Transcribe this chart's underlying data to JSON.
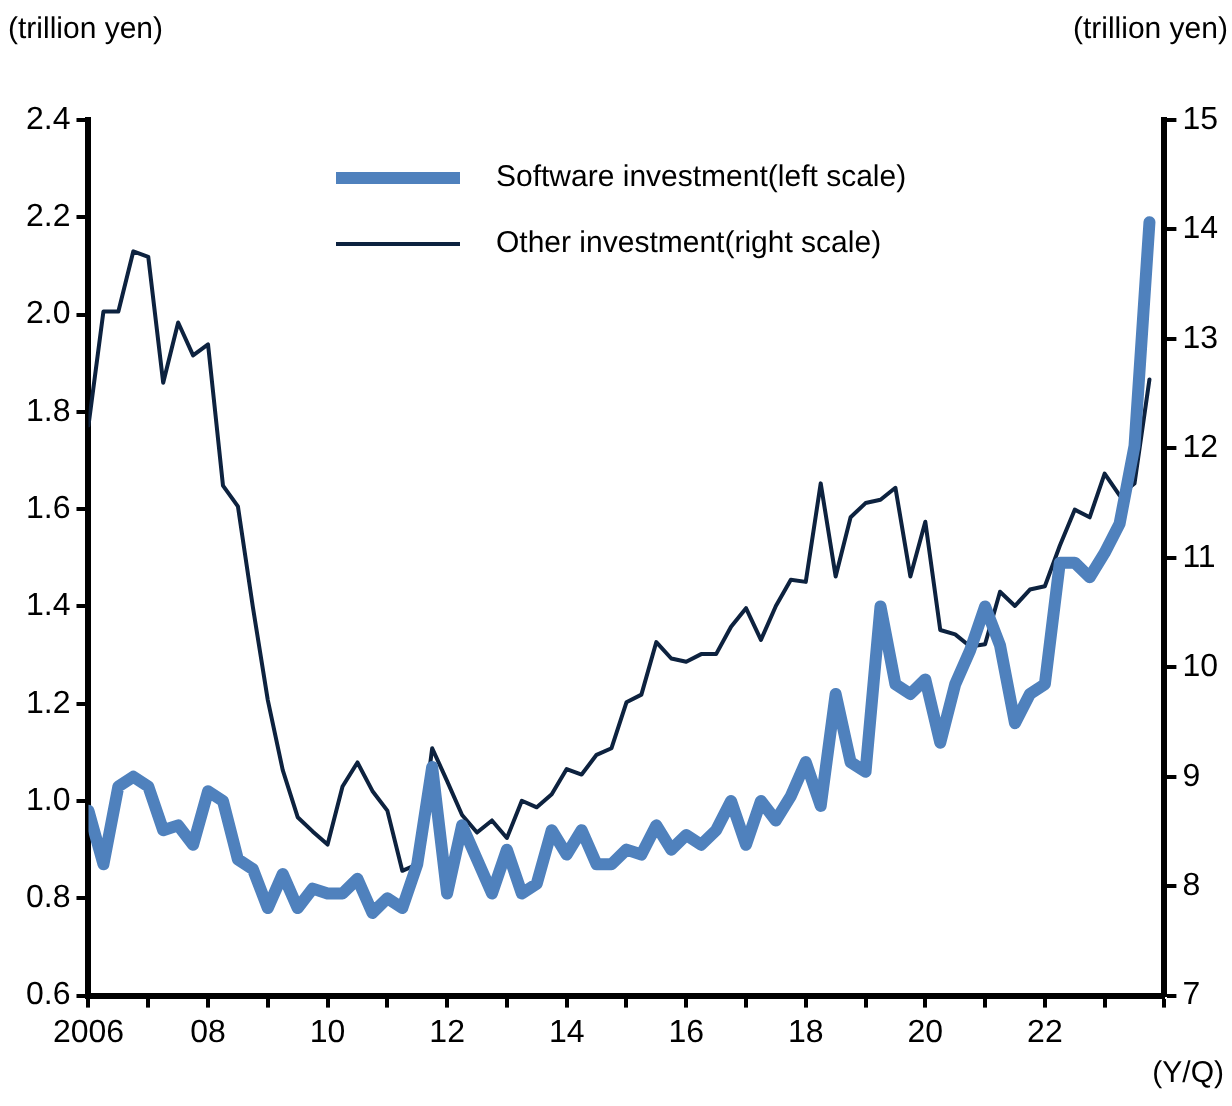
{
  "chart_data": {
    "type": "line",
    "xlabel": "(Y/Q)",
    "ylabel": "(trillion yen)",
    "y2label": "(trillion yen)",
    "x": [
      2006,
      2006.25,
      2006.5,
      2006.75,
      2007,
      2007.25,
      2007.5,
      2007.75,
      2008,
      2008.25,
      2008.5,
      2008.75,
      2009,
      2009.25,
      2009.5,
      2009.75,
      2010,
      2010.25,
      2010.5,
      2010.75,
      2011,
      2011.25,
      2011.5,
      2011.75,
      2012,
      2012.25,
      2012.5,
      2012.75,
      2013,
      2013.25,
      2013.5,
      2013.75,
      2014,
      2014.25,
      2014.5,
      2014.75,
      2015,
      2015.25,
      2015.5,
      2015.75,
      2016,
      2016.25,
      2016.5,
      2016.75,
      2017,
      2017.25,
      2017.5,
      2017.75,
      2018,
      2018.25,
      2018.5,
      2018.75,
      2019,
      2019.25,
      2019.5,
      2019.75,
      2020,
      2020.25,
      2020.5,
      2020.75,
      2021,
      2021.25,
      2021.5,
      2021.75,
      2022,
      2022.25,
      2022.5,
      2022.75,
      2023,
      2023.25,
      2023.5,
      2023.75
    ],
    "series": [
      {
        "name": "Software investment(left scale)",
        "color": "#4f81bd",
        "values": [
          0.98,
          0.87,
          1.03,
          1.05,
          1.03,
          0.94,
          0.95,
          0.91,
          1.02,
          1.0,
          0.88,
          0.86,
          0.78,
          0.85,
          0.78,
          0.82,
          0.81,
          0.81,
          0.84,
          0.77,
          0.8,
          0.78,
          0.87,
          1.07,
          0.81,
          0.95,
          0.88,
          0.81,
          0.9,
          0.81,
          0.83,
          0.94,
          0.89,
          0.94,
          0.87,
          0.87,
          0.9,
          0.89,
          0.95,
          0.9,
          0.93,
          0.91,
          0.94,
          1.0,
          0.91,
          1.0,
          0.96,
          1.01,
          1.08,
          0.99,
          1.22,
          1.08,
          1.06,
          1.4,
          1.24,
          1.22,
          1.25,
          1.12,
          1.24,
          1.31,
          1.4,
          1.32,
          1.16,
          1.22,
          1.24,
          1.49,
          1.49,
          1.46,
          1.51,
          1.57,
          1.73,
          2.19
        ]
      },
      {
        "name": "Other investment(right scale)",
        "color": "#0d223f",
        "axis": "y2",
        "values": [
          12.21,
          13.25,
          13.25,
          13.8,
          13.75,
          12.6,
          13.15,
          12.85,
          12.95,
          11.66,
          11.47,
          10.55,
          9.7,
          9.06,
          8.63,
          8.5,
          8.38,
          8.91,
          9.13,
          8.87,
          8.69,
          8.14,
          8.2,
          9.26,
          8.96,
          8.65,
          8.49,
          8.6,
          8.44,
          8.78,
          8.72,
          8.84,
          9.07,
          9.02,
          9.2,
          9.26,
          9.68,
          9.75,
          10.23,
          10.08,
          10.05,
          10.12,
          10.12,
          10.37,
          10.54,
          10.25,
          10.56,
          10.8,
          10.78,
          11.68,
          10.83,
          11.37,
          11.5,
          11.53,
          11.64,
          10.83,
          11.33,
          10.34,
          10.3,
          10.19,
          10.21,
          10.69,
          10.56,
          10.71,
          10.74,
          11.11,
          11.44,
          11.37,
          11.77,
          11.57,
          11.68,
          12.63
        ]
      }
    ],
    "xlim": [
      2006,
      2024
    ],
    "xticks": [
      {
        "value": 2006,
        "label": "2006"
      },
      {
        "value": 2007,
        "label": null
      },
      {
        "value": 2008,
        "label": "08"
      },
      {
        "value": 2009,
        "label": null
      },
      {
        "value": 2010,
        "label": "10"
      },
      {
        "value": 2011,
        "label": null
      },
      {
        "value": 2012,
        "label": "12"
      },
      {
        "value": 2013,
        "label": null
      },
      {
        "value": 2014,
        "label": "14"
      },
      {
        "value": 2015,
        "label": null
      },
      {
        "value": 2016,
        "label": "16"
      },
      {
        "value": 2017,
        "label": null
      },
      {
        "value": 2018,
        "label": "18"
      },
      {
        "value": 2019,
        "label": null
      },
      {
        "value": 2020,
        "label": "20"
      },
      {
        "value": 2021,
        "label": null
      },
      {
        "value": 2022,
        "label": "22"
      },
      {
        "value": 2023,
        "label": null
      },
      {
        "value": 2024,
        "label": null
      }
    ],
    "ylim": [
      0.6,
      2.4
    ],
    "yticks": [
      {
        "value": 0.6,
        "label": "0.6"
      },
      {
        "value": 0.8,
        "label": "0.8"
      },
      {
        "value": 1.0,
        "label": "1.0"
      },
      {
        "value": 1.2,
        "label": "1.2"
      },
      {
        "value": 1.4,
        "label": "1.4"
      },
      {
        "value": 1.6,
        "label": "1.6"
      },
      {
        "value": 1.8,
        "label": "1.8"
      },
      {
        "value": 2.0,
        "label": "2.0"
      },
      {
        "value": 2.2,
        "label": "2.2"
      },
      {
        "value": 2.4,
        "label": "2.4"
      }
    ],
    "y2lim": [
      7,
      15
    ],
    "y2ticks": [
      7,
      8,
      9,
      10,
      11,
      12,
      13,
      14,
      15
    ],
    "grid": false,
    "legend": "top",
    "marker": "none",
    "line_style": "solid"
  }
}
